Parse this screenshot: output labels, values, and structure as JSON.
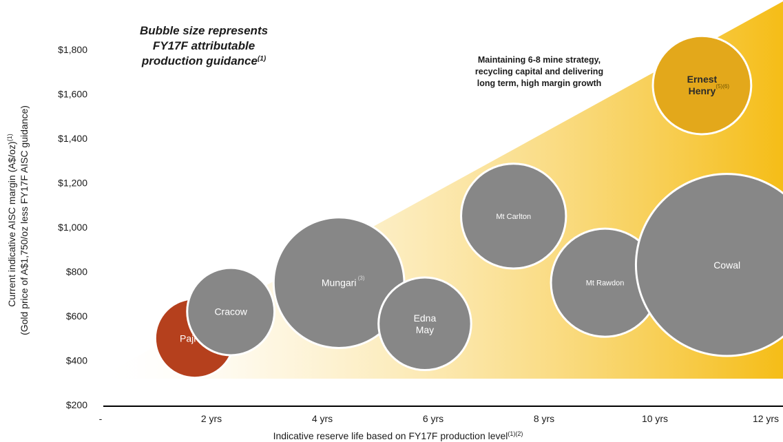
{
  "chart_data": {
    "type": "scatter",
    "subtype": "bubble",
    "title": "Bubble size represents FY17F attributable production guidance",
    "title_lines": [
      "Bubble size represents",
      "FY17F attributable",
      "production guidance"
    ],
    "title_footnote": "(1)",
    "annotation_lines": [
      "Maintaining 6-8 mine strategy,",
      "recycling capital and delivering",
      "long term, high margin growth"
    ],
    "xlabel": "Indicative reserve life based on FY17F production level",
    "xlabel_footnote": "(1)(2)",
    "ylabel_line1": "Current indicative AISC margin (A$/oz)",
    "ylabel_line1_footnote": "(1)",
    "ylabel_line2": "(Gold price of A$1,750/oz less FY17F AISC guidance)",
    "x_ticks": [
      {
        "value": 0,
        "label": "-"
      },
      {
        "value": 2,
        "label": "2 yrs"
      },
      {
        "value": 4,
        "label": "4 yrs"
      },
      {
        "value": 6,
        "label": "6 yrs"
      },
      {
        "value": 8,
        "label": "8 yrs"
      },
      {
        "value": 10,
        "label": "10 yrs"
      },
      {
        "value": 12,
        "label": "12 yrs"
      }
    ],
    "y_ticks": [
      {
        "value": 200,
        "label": "$200"
      },
      {
        "value": 400,
        "label": "$400"
      },
      {
        "value": 600,
        "label": "$600"
      },
      {
        "value": 800,
        "label": "$800"
      },
      {
        "value": 1000,
        "label": "$1,000"
      },
      {
        "value": 1200,
        "label": "$1,200"
      },
      {
        "value": 1400,
        "label": "$1,400"
      },
      {
        "value": 1600,
        "label": "$1,600"
      },
      {
        "value": 1800,
        "label": "$1,800"
      }
    ],
    "xlim": [
      0,
      12
    ],
    "ylim": [
      200,
      1800
    ],
    "grid": false,
    "colors": {
      "grey": "#878787",
      "red": "#b5401d",
      "gold": "#e3a81b",
      "wedge": "#f5c025"
    },
    "series": [
      {
        "label_lines": [
          "Pajngo"
        ],
        "footnote": "(4)",
        "x": 1.7,
        "y": 500,
        "size": 45,
        "color": "#b5401d",
        "style": "normal"
      },
      {
        "label_lines": [
          "Cracow"
        ],
        "footnote": "",
        "x": 2.35,
        "y": 620,
        "size": 55,
        "color": "#878787",
        "style": "normal"
      },
      {
        "label_lines": [
          "Mungari"
        ],
        "footnote": "(3)",
        "x": 4.3,
        "y": 750,
        "size": 125,
        "color": "#878787",
        "style": "normal"
      },
      {
        "label_lines": [
          "Edna",
          "May"
        ],
        "footnote": "",
        "x": 5.85,
        "y": 565,
        "size": 62,
        "color": "#878787",
        "style": "normal"
      },
      {
        "label_lines": [
          "Mt Carlton"
        ],
        "footnote": "",
        "x": 7.45,
        "y": 1050,
        "size": 80,
        "color": "#878787",
        "style": "small"
      },
      {
        "label_lines": [
          "Mt Rawdon"
        ],
        "footnote": "",
        "x": 9.1,
        "y": 750,
        "size": 85,
        "color": "#878787",
        "style": "small"
      },
      {
        "label_lines": [
          "Cowal"
        ],
        "footnote": "",
        "x": 11.3,
        "y": 830,
        "size": 245,
        "color": "#878787",
        "style": "normal"
      },
      {
        "label_lines": [
          "Ernest",
          "Henry"
        ],
        "footnote": "(5)(6)",
        "x": 10.85,
        "y": 1640,
        "size": 70,
        "color": "#e3a81b",
        "style": "bold"
      }
    ]
  }
}
